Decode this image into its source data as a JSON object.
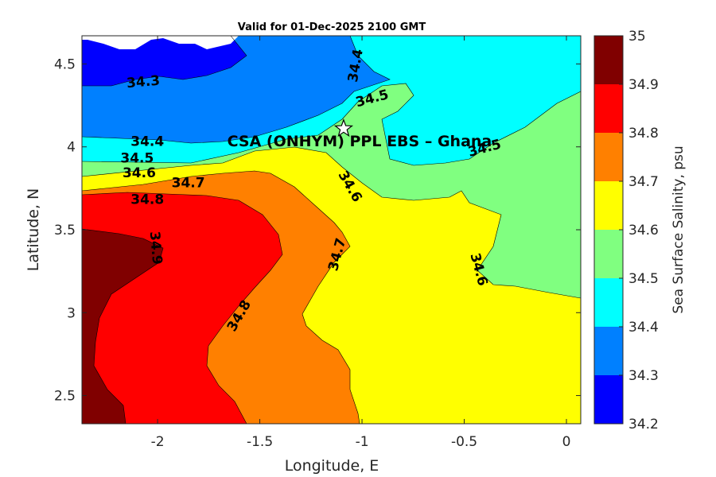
{
  "chart_data": {
    "type": "contour",
    "title": "Valid for 01-Dec-2025 2100 GMT",
    "xlabel": "Longitude, E",
    "ylabel": "Latitude, N",
    "colorbar_label": "Sea Surface Salinity, psu",
    "xlim": [
      -2.37,
      0.07
    ],
    "ylim": [
      2.33,
      4.67
    ],
    "xticks": [
      -2,
      -1.5,
      -1,
      -0.5,
      0
    ],
    "xtick_labels": [
      "-2",
      "-1.5",
      "-1",
      "-0.5",
      "0"
    ],
    "yticks": [
      2.5,
      3,
      3.5,
      4,
      4.5
    ],
    "ytick_labels": [
      "2.5",
      "3",
      "3.5",
      "4",
      "4.5"
    ],
    "levels": [
      34.2,
      34.3,
      34.4,
      34.5,
      34.6,
      34.7,
      34.8,
      34.9,
      35
    ],
    "colorbar_tick_labels": [
      "34.2",
      "34.3",
      "34.4",
      "34.5",
      "34.6",
      "34.7",
      "34.8",
      "34.9",
      "35"
    ],
    "colors": [
      "#0000ff",
      "#0080ff",
      "#00ffff",
      "#80ff80",
      "#ffff00",
      "#ff8000",
      "#ff0000",
      "#800000"
    ],
    "contour_labels": [
      {
        "text": "34.3",
        "lon": -2.07,
        "lat": 4.39,
        "angle": -5
      },
      {
        "text": "34.4",
        "lon": -2.05,
        "lat": 4.03,
        "angle": 0
      },
      {
        "text": "34.4",
        "lon": -1.03,
        "lat": 4.49,
        "angle": -80
      },
      {
        "text": "34.5",
        "lon": -0.95,
        "lat": 4.29,
        "angle": -15
      },
      {
        "text": "34.5",
        "lon": -2.1,
        "lat": 3.93,
        "angle": 0
      },
      {
        "text": "34.5",
        "lon": -0.4,
        "lat": 3.99,
        "angle": -15
      },
      {
        "text": "34.6",
        "lon": -2.09,
        "lat": 3.84,
        "angle": 0
      },
      {
        "text": "34.6",
        "lon": -1.06,
        "lat": 3.76,
        "angle": 60
      },
      {
        "text": "34.6",
        "lon": -0.43,
        "lat": 3.26,
        "angle": 75
      },
      {
        "text": "34.7",
        "lon": -1.85,
        "lat": 3.78,
        "angle": 0
      },
      {
        "text": "34.7",
        "lon": -1.12,
        "lat": 3.35,
        "angle": -75
      },
      {
        "text": "34.8",
        "lon": -2.05,
        "lat": 3.68,
        "angle": 0
      },
      {
        "text": "34.8",
        "lon": -1.6,
        "lat": 2.98,
        "angle": -60
      },
      {
        "text": "34.9",
        "lon": -2.01,
        "lat": 3.39,
        "angle": 85
      }
    ],
    "station": {
      "name": "CSA (ONHYM) PPL EBS  – Ghana",
      "lon": -1.09,
      "lat": 4.11
    }
  }
}
